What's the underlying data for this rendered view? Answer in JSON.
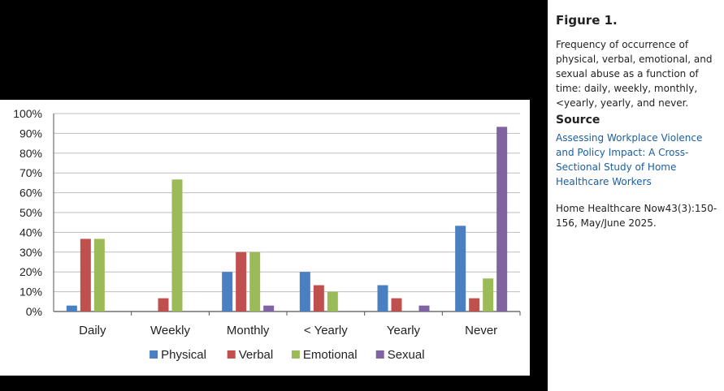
{
  "chart_data": {
    "type": "bar",
    "categories": [
      "Daily",
      "Weekly",
      "Monthly",
      "< Yearly",
      "Yearly",
      "Never"
    ],
    "series": [
      {
        "name": "Physical",
        "color": "#4a7fc1",
        "values": [
          3,
          0,
          20,
          20,
          13.3,
          43.3
        ]
      },
      {
        "name": "Verbal",
        "color": "#c0504d",
        "values": [
          36.7,
          6.7,
          30,
          13.3,
          6.7,
          6.7
        ]
      },
      {
        "name": "Emotional",
        "color": "#9bbb59",
        "values": [
          36.7,
          66.7,
          30,
          10,
          0,
          16.7
        ]
      },
      {
        "name": "Sexual",
        "color": "#8064a2",
        "values": [
          0,
          0,
          3,
          0,
          3,
          93.3
        ]
      }
    ],
    "ylim": [
      0,
      100
    ],
    "yticks": [
      "0%",
      "10%",
      "20%",
      "30%",
      "40%",
      "50%",
      "60%",
      "70%",
      "80%",
      "90%",
      "100%"
    ],
    "grid": true,
    "legend": "bottom"
  },
  "figure": {
    "title": "Figure 1.",
    "caption": "Frequency of occurrence of physical, verbal, emotional, and sexual abuse as a function of time: daily, weekly, monthly, <yearly, yearly, and never."
  },
  "source": {
    "heading": "Source",
    "link_text": "Assessing Workplace Violence and Policy Impact: A Cross-Sectional Study of Home Healthcare Workers",
    "citation": "Home Healthcare Now43(3):150-156, May/June 2025."
  }
}
